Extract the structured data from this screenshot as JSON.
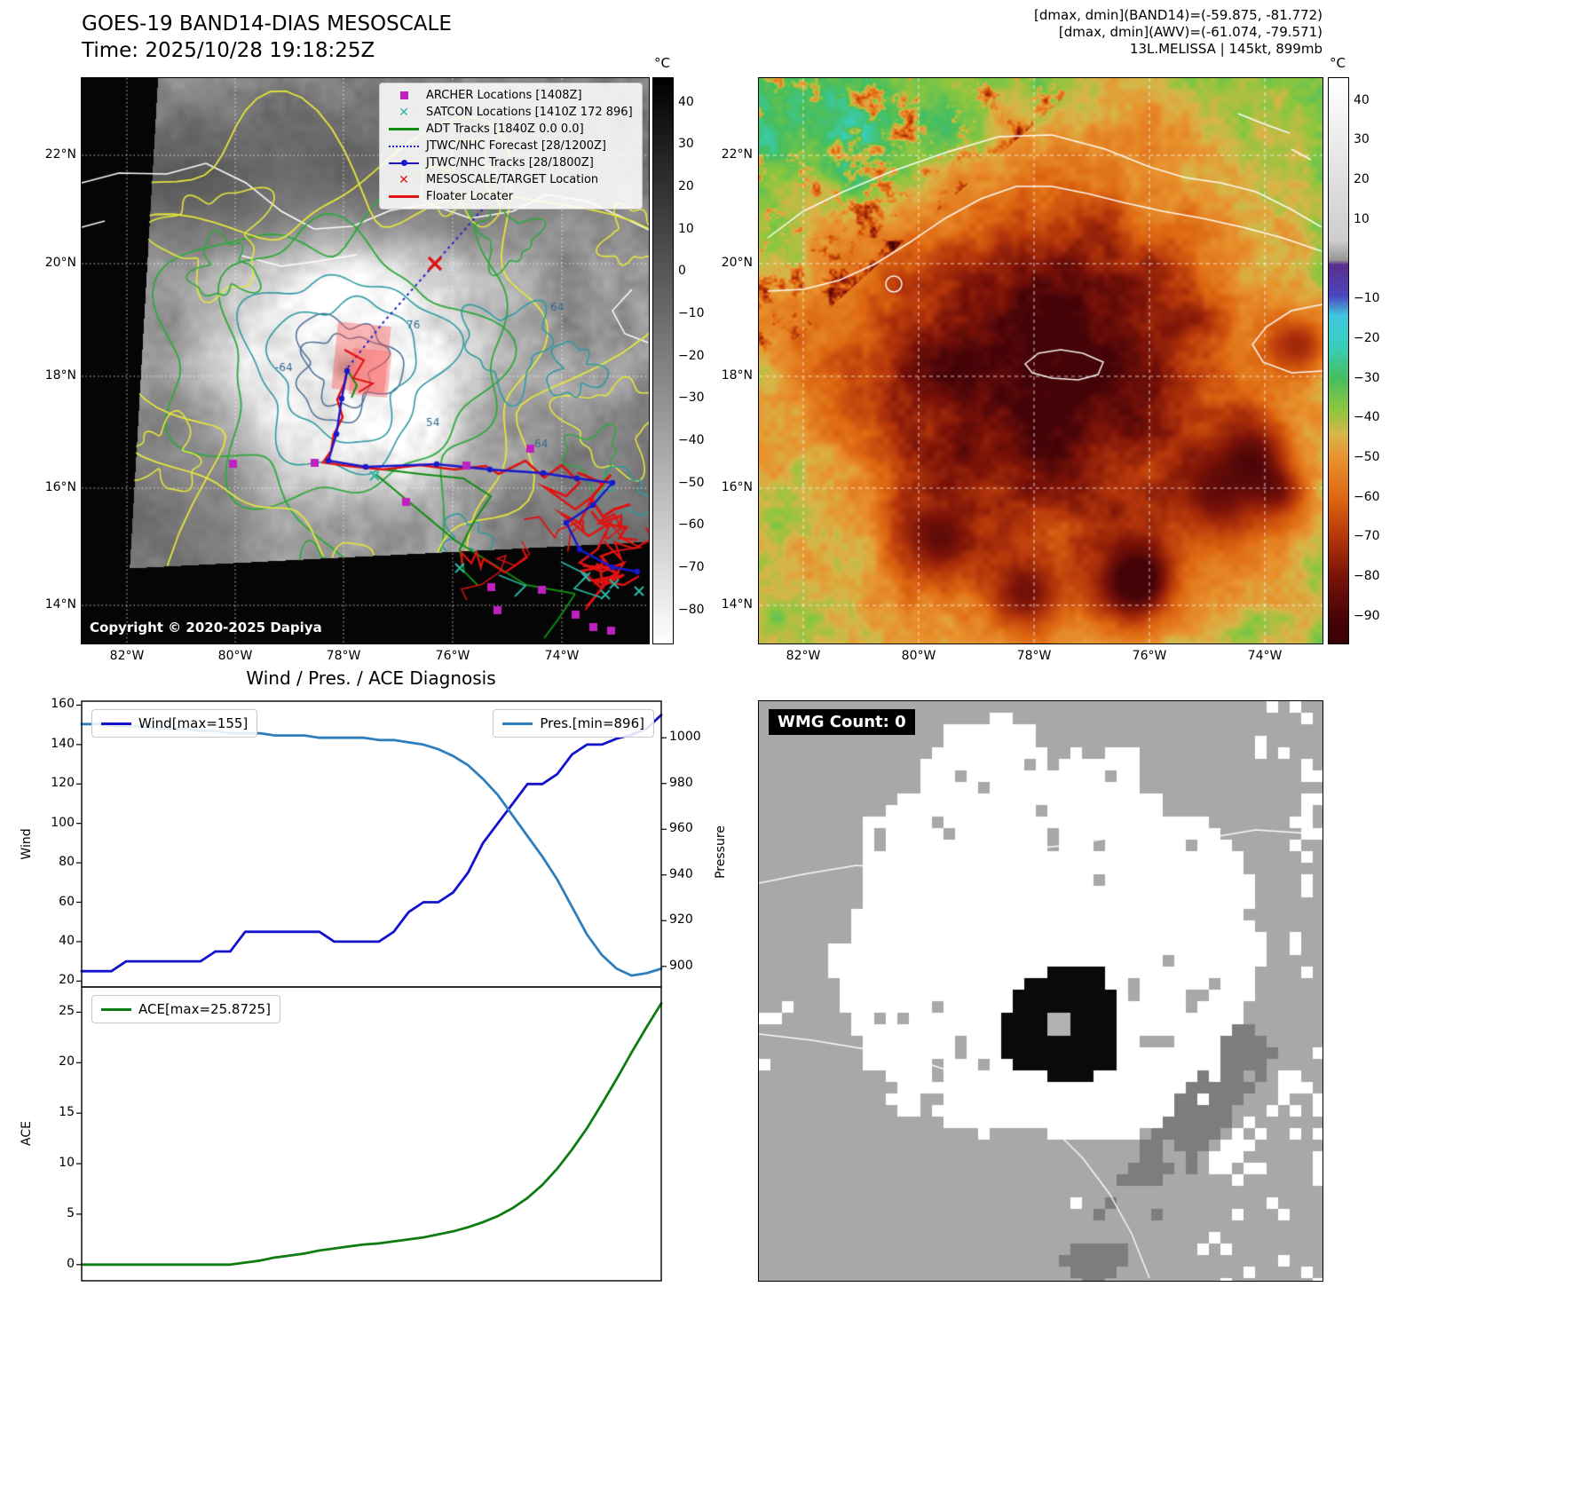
{
  "colors": {
    "wind": "#1212cc",
    "pressure": "#2f7fbe",
    "ace": "#0e7c12",
    "archer": "#c020c0",
    "satcon": "#2ab4a4",
    "adt": "#108c10",
    "jtwc_forecast": "#2020c8",
    "jtwc_track": "#1818cc",
    "target": "#e01212",
    "floater": "#e01212"
  },
  "panel_tl": {
    "title": "GOES-19 BAND14-DIAS MESOSCALE",
    "time_line": "Time: 2025/10/28 19:18:25Z",
    "copyright": "Copyright © 2020-2025 Dapiya",
    "colorbar_unit": "°C",
    "colorbar_ticks": [
      "40",
      "30",
      "20",
      "10",
      "0",
      "−10",
      "−20",
      "−30",
      "−40",
      "−50",
      "−60",
      "−70",
      "−80"
    ],
    "lat_ticks": [
      "22°N",
      "20°N",
      "18°N",
      "16°N",
      "14°N"
    ],
    "lon_ticks": [
      "82°W",
      "80°W",
      "78°W",
      "76°W",
      "74°W"
    ],
    "contour_labels": [
      "64",
      "76",
      "-64",
      "54",
      "64"
    ],
    "legend_items": [
      {
        "marker": "square",
        "color": "#c020c0",
        "label": "ARCHER Locations [1408Z]",
        "icon_name": "archer-square-icon"
      },
      {
        "marker": "x",
        "color": "#2ab4a4",
        "label": "SATCON Locations [1410Z 172 896]",
        "icon_name": "satcon-x-icon"
      },
      {
        "marker": "line",
        "color": "#108c10",
        "label": "ADT Tracks [1840Z 0.0 0.0]",
        "icon_name": "adt-line-icon"
      },
      {
        "marker": "dotted",
        "color": "#2020c8",
        "label": "JTWC/NHC Forecast [28/1200Z]",
        "icon_name": "forecast-dotted-line-icon"
      },
      {
        "marker": "line-dot",
        "color": "#1818cc",
        "label": "JTWC/NHC Tracks [28/1800Z]",
        "icon_name": "track-line-dot-icon"
      },
      {
        "marker": "x",
        "color": "#e01212",
        "label": "MESOSCALE/TARGET Location",
        "icon_name": "target-x-icon"
      },
      {
        "marker": "line",
        "color": "#e01212",
        "label": "Floater Locater",
        "icon_name": "floater-line-icon"
      }
    ]
  },
  "panel_tr": {
    "info_lines": [
      "[dmax, dmin](BAND14)=(-59.875, -81.772)",
      "[dmax, dmin](AWV)=(-61.074, -79.571)",
      "13L.MELISSA | 145kt, 899mb"
    ],
    "colorbar_unit": "°C",
    "colorbar_ticks": [
      "40",
      "30",
      "20",
      "10",
      "−10",
      "−20",
      "−30",
      "−40",
      "−50",
      "−60",
      "−70",
      "−80",
      "−90"
    ],
    "lat_ticks": [
      "22°N",
      "20°N",
      "18°N",
      "16°N",
      "14°N"
    ],
    "lon_ticks": [
      "82°W",
      "80°W",
      "78°W",
      "76°W",
      "74°W"
    ]
  },
  "panel_br": {
    "wmg_label": "WMG Count: 0"
  },
  "chart_data": [
    {
      "type": "line",
      "title": "Wind / Pres. / ACE Diagnosis",
      "ylabel": "Wind",
      "ylabel_right": "Pressure",
      "yticks_left": [
        160,
        140,
        120,
        100,
        80,
        60,
        40,
        20
      ],
      "yticks_right": [
        1000,
        980,
        960,
        940,
        920,
        900
      ],
      "ylim_left": [
        17,
        162
      ],
      "ylim_right": [
        891,
        1016
      ],
      "legend_position": "top",
      "series": [
        {
          "name": "Wind[max=155]",
          "axis": "left",
          "color_key": "wind",
          "values": [
            25,
            25,
            25,
            30,
            30,
            30,
            30,
            30,
            30,
            35,
            35,
            45,
            45,
            45,
            45,
            45,
            45,
            40,
            40,
            40,
            40,
            45,
            55,
            60,
            60,
            65,
            75,
            90,
            100,
            110,
            120,
            120,
            125,
            135,
            140,
            140,
            143,
            145,
            148,
            155
          ]
        },
        {
          "name": "Pres.[min=896]",
          "axis": "right",
          "color_key": "pressure",
          "values": [
            1006,
            1006,
            1005,
            1005,
            1005,
            1004,
            1004,
            1004,
            1003,
            1003,
            1002,
            1002,
            1002,
            1001,
            1001,
            1001,
            1000,
            1000,
            1000,
            1000,
            999,
            999,
            998,
            997,
            995,
            992,
            988,
            982,
            975,
            966,
            957,
            948,
            938,
            926,
            914,
            905,
            899,
            896,
            897,
            899
          ]
        }
      ]
    },
    {
      "type": "line",
      "ylabel": "ACE",
      "yticks_left": [
        25,
        20,
        15,
        10,
        5,
        0
      ],
      "ylim_left": [
        -1.6,
        27.5
      ],
      "series": [
        {
          "name": "ACE[max=25.8725]",
          "axis": "left",
          "color_key": "ace",
          "values": [
            0,
            0,
            0,
            0,
            0,
            0,
            0,
            0,
            0,
            0,
            0,
            0.2,
            0.4,
            0.7,
            0.9,
            1.1,
            1.4,
            1.6,
            1.8,
            2.0,
            2.1,
            2.3,
            2.5,
            2.7,
            3.0,
            3.3,
            3.7,
            4.2,
            4.8,
            5.6,
            6.6,
            7.9,
            9.5,
            11.4,
            13.5,
            15.9,
            18.4,
            21.0,
            23.5,
            25.8725
          ]
        }
      ]
    }
  ]
}
